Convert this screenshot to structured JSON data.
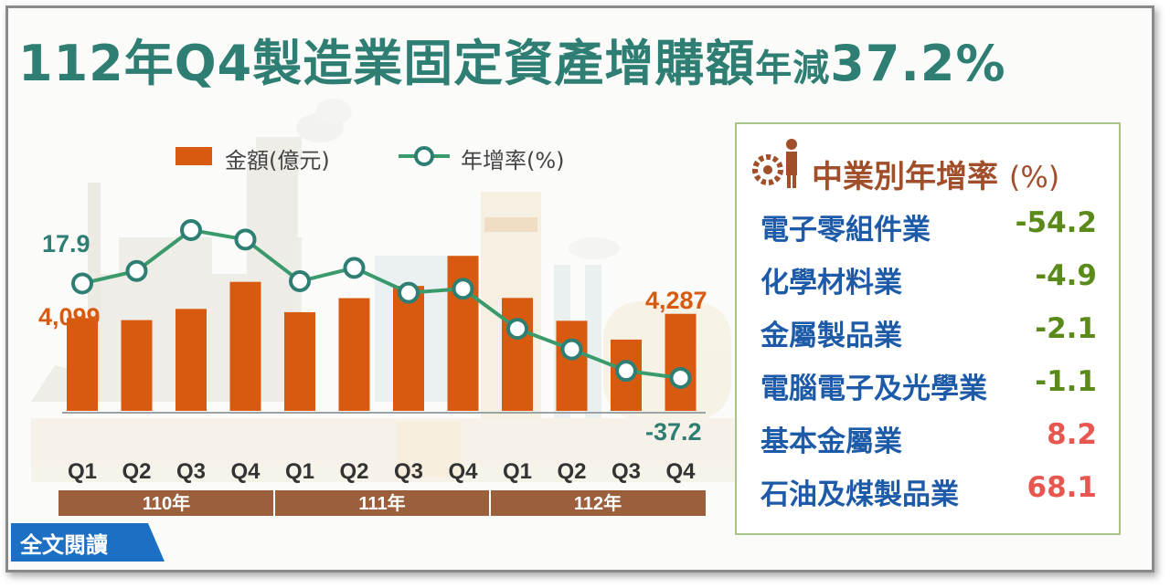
{
  "title": {
    "part1": "112年",
    "part2": "Q4製造業固定資產增購額",
    "part3": "年減",
    "part4": "37.2%"
  },
  "legend": {
    "bar_label": "金額(億元)",
    "line_label": "年增率(%)"
  },
  "colors": {
    "bar": "#d85a10",
    "line": "#3a9a6b",
    "marker": "#2e7e73",
    "negative": "#5a8a1a",
    "positive": "#e8574f",
    "label_teal": "#2e7e73",
    "label_orange": "#d85a10",
    "year_band": "#9c5f3b"
  },
  "chart_data": {
    "type": "bar+line",
    "categories": [
      "Q1",
      "Q2",
      "Q3",
      "Q4",
      "Q1",
      "Q2",
      "Q3",
      "Q4",
      "Q1",
      "Q2",
      "Q3",
      "Q4"
    ],
    "year_groups": [
      {
        "label": "110年",
        "quarters": 4
      },
      {
        "label": "111年",
        "quarters": 4
      },
      {
        "label": "112年",
        "quarters": 4
      }
    ],
    "series": [
      {
        "name": "金額(億元)",
        "kind": "bar",
        "values": [
          4099,
          4010,
          4505,
          5700,
          4360,
          4980,
          5520,
          6850,
          4990,
          3980,
          3150,
          4287
        ]
      },
      {
        "name": "年增率(%)",
        "kind": "line",
        "values": [
          17.9,
          25.2,
          49.0,
          43.5,
          19.2,
          27.0,
          12.5,
          14.8,
          -8.5,
          -20.5,
          -33.0,
          -37.2
        ]
      }
    ],
    "annotations": {
      "first_rate": "17.9",
      "first_amount": "4,099",
      "last_amount": "4,287",
      "last_rate": "-37.2"
    }
  },
  "side_panel": {
    "title": "中業別年增率",
    "title_unit": "(%)",
    "rows": [
      {
        "label": "電子零組件業",
        "value": "-54.2",
        "sign": "neg"
      },
      {
        "label": "化學材料業",
        "value": "-4.9",
        "sign": "neg"
      },
      {
        "label": "金屬製品業",
        "value": "-2.1",
        "sign": "neg"
      },
      {
        "label": "電腦電子及光學業",
        "value": "-1.1",
        "sign": "neg"
      },
      {
        "label": "基本金屬業",
        "value": "8.2",
        "sign": "pos"
      },
      {
        "label": "石油及煤製品業",
        "value": "68.1",
        "sign": "pos"
      }
    ]
  },
  "read_button": {
    "label": "全文閱讀"
  }
}
